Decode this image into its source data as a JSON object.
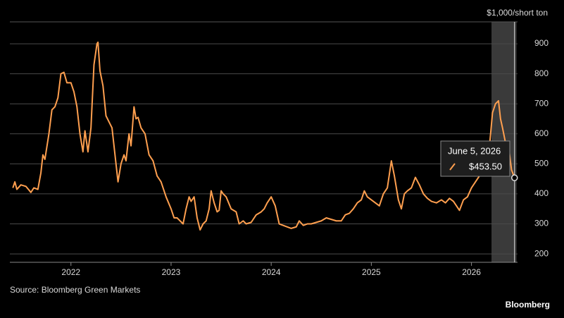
{
  "chart_data": {
    "type": "line",
    "unit_label": "$1,000/short ton",
    "source": "Source: Bloomberg Green Markets",
    "brand": "Bloomberg",
    "xlim": [
      2021.39,
      2026.46
    ],
    "xticks": [
      2022,
      2023,
      2024,
      2025,
      2026
    ],
    "ylim": [
      172,
      973
    ],
    "yticks": [
      200,
      300,
      400,
      500,
      600,
      700,
      800,
      900
    ],
    "grid": true,
    "y_axis_side": "right",
    "shade": [
      2026.2,
      2026.45
    ],
    "tooltip": {
      "date": "June 5, 2026",
      "value": 453.5,
      "label": "$453.50"
    },
    "series": [
      {
        "color": "#ff9f4f",
        "x": [
          2021.42,
          2021.44,
          2021.46,
          2021.5,
          2021.55,
          2021.6,
          2021.63,
          2021.67,
          2021.7,
          2021.72,
          2021.74,
          2021.78,
          2021.81,
          2021.84,
          2021.87,
          2021.9,
          2021.93,
          2021.96,
          2022.0,
          2022.03,
          2022.06,
          2022.09,
          2022.12,
          2022.14,
          2022.17,
          2022.2,
          2022.23,
          2022.26,
          2022.27,
          2022.29,
          2022.32,
          2022.35,
          2022.38,
          2022.41,
          2022.44,
          2022.47,
          2022.5,
          2022.53,
          2022.55,
          2022.58,
          2022.6,
          2022.63,
          2022.65,
          2022.67,
          2022.7,
          2022.74,
          2022.78,
          2022.82,
          2022.86,
          2022.9,
          2022.95,
          2023.0,
          2023.03,
          2023.06,
          2023.09,
          2023.12,
          2023.15,
          2023.18,
          2023.2,
          2023.23,
          2023.26,
          2023.29,
          2023.32,
          2023.35,
          2023.38,
          2023.4,
          2023.43,
          2023.46,
          2023.48,
          2023.5,
          2023.52,
          2023.55,
          2023.6,
          2023.65,
          2023.68,
          2023.72,
          2023.75,
          2023.8,
          2023.85,
          2023.9,
          2023.93,
          2023.96,
          2024.0,
          2024.04,
          2024.08,
          2024.12,
          2024.16,
          2024.2,
          2024.25,
          2024.28,
          2024.32,
          2024.36,
          2024.4,
          2024.45,
          2024.5,
          2024.55,
          2024.6,
          2024.65,
          2024.7,
          2024.74,
          2024.78,
          2024.82,
          2024.86,
          2024.9,
          2024.93,
          2024.96,
          2025.0,
          2025.04,
          2025.08,
          2025.12,
          2025.16,
          2025.2,
          2025.23,
          2025.27,
          2025.3,
          2025.33,
          2025.36,
          2025.4,
          2025.44,
          2025.48,
          2025.52,
          2025.56,
          2025.6,
          2025.65,
          2025.7,
          2025.74,
          2025.78,
          2025.82,
          2025.86,
          2025.88,
          2025.92,
          2025.96,
          2026.0,
          2026.04,
          2026.08,
          2026.12,
          2026.15,
          2026.18,
          2026.21,
          2026.24,
          2026.27,
          2026.29,
          2026.31,
          2026.34,
          2026.37,
          2026.4,
          2026.43
        ],
        "values": [
          420,
          440,
          415,
          430,
          425,
          405,
          420,
          415,
          470,
          530,
          515,
          600,
          680,
          690,
          720,
          800,
          805,
          770,
          770,
          740,
          690,
          600,
          540,
          610,
          540,
          620,
          830,
          900,
          905,
          810,
          760,
          660,
          640,
          620,
          530,
          440,
          500,
          530,
          510,
          600,
          560,
          690,
          650,
          655,
          620,
          600,
          530,
          510,
          460,
          440,
          390,
          350,
          320,
          320,
          310,
          300,
          350,
          390,
          375,
          390,
          320,
          280,
          300,
          310,
          350,
          410,
          370,
          340,
          345,
          410,
          400,
          390,
          350,
          340,
          300,
          310,
          300,
          305,
          330,
          340,
          350,
          370,
          390,
          360,
          300,
          295,
          290,
          285,
          290,
          310,
          295,
          300,
          300,
          305,
          310,
          320,
          315,
          310,
          310,
          330,
          335,
          350,
          370,
          380,
          410,
          390,
          380,
          370,
          360,
          400,
          420,
          510,
          460,
          380,
          350,
          400,
          410,
          420,
          455,
          430,
          400,
          385,
          375,
          370,
          380,
          370,
          385,
          375,
          355,
          345,
          380,
          390,
          420,
          440,
          460,
          470,
          500,
          560,
          670,
          700,
          710,
          650,
          620,
          570,
          560,
          480,
          453.5
        ]
      }
    ]
  }
}
